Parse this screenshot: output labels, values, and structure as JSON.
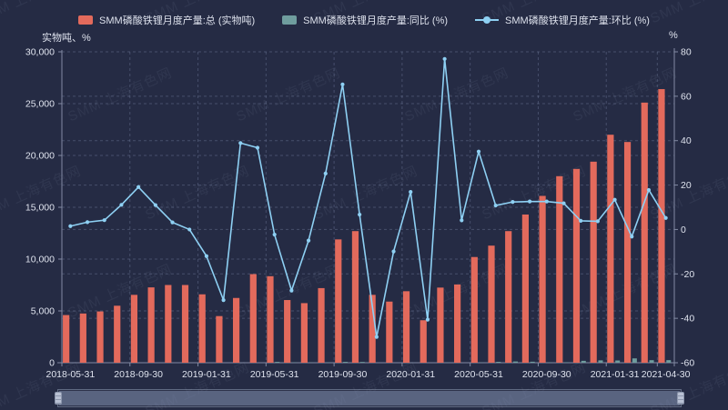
{
  "watermark": {
    "text": "SMM 上海有色网"
  },
  "legend": {
    "items": [
      {
        "label": "SMM磷酸铁锂月度产量:总 (实物吨)",
        "type": "bar",
        "color": "#e36a5c"
      },
      {
        "label": "SMM磷酸铁锂月度产量:同比 (%)",
        "type": "bar",
        "color": "#6f9d9e"
      },
      {
        "label": "SMM磷酸铁锂月度产量:环比 (%)",
        "type": "line",
        "color": "#8ed0f3"
      }
    ]
  },
  "chart_data": {
    "type": "mixed-bar-line",
    "x": [
      "2018-05-31",
      "2018-06-30",
      "2018-07-31",
      "2018-08-31",
      "2018-09-30",
      "2018-10-31",
      "2018-11-30",
      "2018-12-31",
      "2019-01-31",
      "2019-02-28",
      "2019-03-31",
      "2019-04-30",
      "2019-05-31",
      "2019-06-30",
      "2019-07-31",
      "2019-08-31",
      "2019-09-30",
      "2019-10-31",
      "2019-11-30",
      "2019-12-31",
      "2020-01-31",
      "2020-02-29",
      "2020-03-31",
      "2020-04-30",
      "2020-05-31",
      "2020-06-30",
      "2020-07-31",
      "2020-08-31",
      "2020-09-30",
      "2020-10-31",
      "2020-11-30",
      "2020-12-31",
      "2021-01-31",
      "2021-02-28",
      "2021-03-31",
      "2021-04-30"
    ],
    "x_label_indices": [
      0,
      4,
      8,
      12,
      16,
      20,
      24,
      28,
      32,
      35
    ],
    "series": [
      {
        "name": "SMM磷酸铁锂月度产量:总 (实物吨)",
        "type": "bar",
        "axis": "left",
        "color": "#e36a5c",
        "values": [
          4600,
          4750,
          4950,
          5500,
          6550,
          7270,
          7500,
          7500,
          6600,
          4500,
          6250,
          8550,
          8350,
          6050,
          5750,
          7200,
          11900,
          12700,
          6550,
          5900,
          6900,
          4100,
          7250,
          7550,
          10200,
          11300,
          12700,
          14300,
          16100,
          18000,
          18700,
          19400,
          22000,
          21300,
          25100,
          26400
        ]
      },
      {
        "name": "SMM磷酸铁锂月度产量:同比 (%)",
        "type": "bar",
        "axis": "left",
        "color": "#6f9d9e",
        "values": [
          null,
          null,
          null,
          null,
          null,
          null,
          null,
          null,
          null,
          null,
          null,
          null,
          81.5,
          27.4,
          16.2,
          30.9,
          81.7,
          74.7,
          -12.7,
          -21.3,
          4.5,
          -8.9,
          16.0,
          -11.7,
          22.2,
          86.8,
          120.9,
          98.6,
          35.3,
          41.7,
          185.5,
          228.8,
          218.8,
          419.5,
          246.2,
          249.7
        ]
      },
      {
        "name": "SMM磷酸铁锂月度产量:环比 (%)",
        "type": "line",
        "axis": "right",
        "color": "#8ed0f3",
        "values": [
          1.5,
          3.3,
          4.2,
          11.1,
          19.1,
          11.0,
          3.2,
          0.0,
          -12.0,
          -31.8,
          38.9,
          36.8,
          -2.3,
          -27.5,
          -5.0,
          25.2,
          65.3,
          6.7,
          -48.4,
          -9.9,
          16.9,
          -40.6,
          76.8,
          4.1,
          35.1,
          10.8,
          12.4,
          12.6,
          12.6,
          11.8,
          3.9,
          3.7,
          13.4,
          -3.2,
          17.8,
          5.2
        ]
      }
    ],
    "left_axis": {
      "name": "实物吨、%",
      "min": 0,
      "max": 30000,
      "interval": 5000,
      "labels": [
        "0",
        "5,000",
        "10,000",
        "15,000",
        "20,000",
        "25,000",
        "30,000"
      ]
    },
    "right_axis": {
      "name": "%",
      "min": -60,
      "max": 80,
      "interval": 20,
      "labels": [
        "-60",
        "-40",
        "-20",
        "0",
        "20",
        "40",
        "60",
        "80"
      ]
    },
    "grid": true,
    "legend_position": "top"
  }
}
